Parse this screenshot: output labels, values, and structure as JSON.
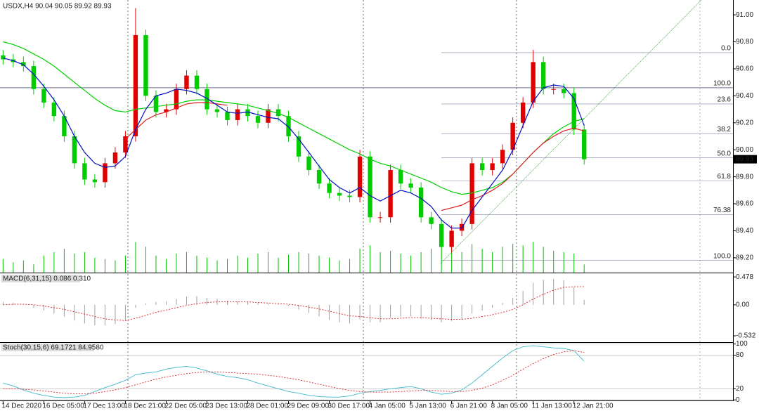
{
  "chart_data": [
    {
      "type": "candlestick",
      "title": "USDX,H4 90.04 90.05 89.92 89.93",
      "xlim": [
        -0.3,
        71.6
      ],
      "xticks": [
        {
          "value": 0,
          "label": "14 Dec 2020"
        },
        {
          "value": 4,
          "label": "16 Dec 05:00"
        },
        {
          "value": 8,
          "label": "17 Dec 13:00"
        },
        {
          "value": 12,
          "label": "18 Dec 21:00"
        },
        {
          "value": 16,
          "label": "22 Dec 05:00"
        },
        {
          "value": 20,
          "label": "23 Dec 13:00"
        },
        {
          "value": 24,
          "label": "28 Dec 01:00"
        },
        {
          "value": 28,
          "label": "29 Dec 09:00"
        },
        {
          "value": 32,
          "label": "30 Dec 17:00"
        },
        {
          "value": 36,
          "label": "4 Jan 05:00"
        },
        {
          "value": 40,
          "label": "5 Jan 13:00"
        },
        {
          "value": 44,
          "label": "6 Jan 21:00"
        },
        {
          "value": 48,
          "label": "8 Jan 05:00"
        },
        {
          "value": 52,
          "label": "11 Jan 13:00"
        },
        {
          "value": 56,
          "label": "12 Jan 21:00"
        }
      ],
      "ylim": [
        89.09,
        91.11
      ],
      "yticks": [
        {
          "value": 91,
          "label": "91.00"
        },
        {
          "value": 90.8,
          "label": "90.80"
        },
        {
          "value": 90.6,
          "label": "90.60"
        },
        {
          "value": 90.4,
          "label": "90.40"
        },
        {
          "value": 90.2,
          "label": "90.20"
        },
        {
          "value": 90,
          "label": "90.00"
        },
        {
          "value": 89.8,
          "label": "89.80"
        },
        {
          "value": 89.6,
          "label": "89.60"
        },
        {
          "value": 89.4,
          "label": "89.40"
        },
        {
          "value": 89.2,
          "label": "89.20"
        }
      ],
      "candles": {
        "up_color": "#e00000",
        "down_color": "#00cc00",
        "open": [
          90.7,
          90.67,
          90.65,
          90.62,
          90.45,
          90.35,
          90.25,
          90.1,
          89.9,
          89.78,
          89.76,
          89.9,
          89.98,
          90.1,
          90.85,
          90.4,
          90.28,
          90.3,
          90.45,
          90.55,
          90.45,
          90.3,
          90.28,
          90.22,
          90.3,
          90.25,
          90.2,
          90.3,
          90.25,
          90.1,
          89.95,
          89.85,
          89.75,
          89.68,
          89.66,
          89.65,
          89.95,
          89.5,
          89.5,
          89.85,
          89.75,
          89.72,
          89.5,
          89.45,
          89.28,
          89.4,
          89.45,
          89.9,
          89.85,
          89.9,
          90.0,
          90.2,
          90.35,
          90.65,
          90.45,
          90.45,
          90.42,
          90.15
        ],
        "high": [
          90.74,
          90.71,
          90.69,
          90.66,
          90.49,
          90.39,
          90.29,
          90.14,
          89.94,
          89.82,
          89.94,
          90.02,
          90.14,
          91.05,
          90.89,
          90.44,
          90.34,
          90.49,
          90.59,
          90.59,
          90.49,
          90.34,
          90.32,
          90.34,
          90.34,
          90.29,
          90.34,
          90.34,
          90.29,
          90.14,
          89.99,
          89.89,
          89.79,
          89.72,
          89.7,
          90.0,
          89.99,
          89.54,
          89.89,
          89.89,
          89.79,
          89.76,
          89.54,
          89.49,
          89.44,
          89.49,
          89.94,
          89.94,
          89.94,
          90.04,
          90.24,
          90.39,
          90.74,
          90.69,
          90.49,
          90.49,
          90.46,
          90.19
        ],
        "low": [
          90.63,
          90.61,
          90.58,
          90.41,
          90.31,
          90.21,
          90.06,
          89.86,
          89.74,
          89.72,
          89.72,
          89.86,
          89.94,
          90.06,
          90.36,
          90.24,
          90.24,
          90.26,
          90.41,
          90.41,
          90.26,
          90.24,
          90.18,
          90.18,
          90.21,
          90.16,
          90.16,
          90.21,
          90.06,
          89.91,
          89.81,
          89.71,
          89.64,
          89.62,
          89.61,
          89.61,
          89.46,
          89.46,
          89.46,
          89.71,
          89.68,
          89.46,
          89.41,
          89.18,
          89.24,
          89.36,
          89.41,
          89.81,
          89.81,
          89.86,
          89.96,
          90.16,
          90.31,
          90.41,
          90.41,
          90.38,
          90.11,
          89.89
        ],
        "close": [
          90.67,
          90.65,
          90.62,
          90.45,
          90.35,
          90.25,
          90.1,
          89.9,
          89.78,
          89.76,
          89.9,
          89.98,
          90.1,
          90.85,
          90.4,
          90.28,
          90.3,
          90.45,
          90.55,
          90.45,
          90.3,
          90.28,
          90.22,
          90.3,
          90.25,
          90.2,
          90.3,
          90.25,
          90.1,
          89.95,
          89.85,
          89.75,
          89.68,
          89.66,
          89.65,
          89.95,
          89.5,
          89.5,
          89.85,
          89.75,
          89.72,
          89.5,
          89.45,
          89.28,
          89.4,
          89.45,
          89.9,
          89.85,
          89.9,
          90.0,
          90.2,
          90.35,
          90.65,
          90.45,
          90.45,
          90.42,
          90.15,
          89.93
        ]
      },
      "volume": {
        "color": "#00c000",
        "ylim": [
          0,
          400
        ],
        "values": [
          20,
          15,
          18,
          12,
          25,
          30,
          35,
          28,
          30,
          22,
          20,
          18,
          25,
          45,
          38,
          25,
          20,
          28,
          30,
          25,
          22,
          18,
          20,
          25,
          22,
          28,
          30,
          22,
          26,
          30,
          28,
          25,
          22,
          18,
          20,
          35,
          40,
          30,
          32,
          28,
          25,
          30,
          35,
          45,
          38,
          30,
          42,
          35,
          30,
          38,
          42,
          40,
          45,
          38,
          32,
          30,
          28,
          12
        ]
      },
      "series": [
        {
          "color": "#00d000",
          "values": [
            90.8,
            90.78,
            90.75,
            90.71,
            90.67,
            90.62,
            90.56,
            90.5,
            90.44,
            90.38,
            90.33,
            90.29,
            90.28,
            90.3,
            90.31,
            90.32,
            90.33,
            90.34,
            90.36,
            90.37,
            90.37,
            90.36,
            90.35,
            90.34,
            90.33,
            90.31,
            90.29,
            90.27,
            90.24,
            90.2,
            90.16,
            90.12,
            90.08,
            90.04,
            90.0,
            89.97,
            89.93,
            89.9,
            89.88,
            89.85,
            89.82,
            89.79,
            89.76,
            89.72,
            89.69,
            89.67,
            89.68,
            89.7,
            89.72,
            89.76,
            89.82,
            89.9,
            89.98,
            90.05,
            90.12,
            90.17,
            90.21,
            90.23
          ]
        },
        {
          "color": "#e02020",
          "values": [
            null,
            null,
            null,
            null,
            null,
            null,
            null,
            null,
            null,
            null,
            null,
            null,
            90.08,
            90.15,
            90.22,
            90.26,
            90.28,
            90.31,
            90.34,
            90.35,
            90.35,
            90.34,
            90.33,
            null,
            null,
            null,
            null,
            null,
            null,
            null,
            null,
            null,
            null,
            null,
            null,
            null,
            null,
            null,
            null,
            null,
            null,
            null,
            null,
            89.55,
            89.57,
            89.59,
            89.63,
            89.66,
            89.7,
            89.75,
            89.82,
            89.9,
            89.98,
            90.05,
            90.1,
            90.14,
            90.16,
            90.14
          ]
        },
        {
          "color": "#0010c0",
          "values": [
            90.68,
            90.66,
            90.63,
            90.56,
            90.47,
            90.37,
            90.25,
            90.1,
            89.98,
            89.9,
            89.87,
            89.88,
            89.95,
            90.15,
            90.3,
            90.4,
            90.42,
            90.45,
            90.44,
            90.42,
            90.38,
            90.33,
            90.28,
            90.27,
            90.28,
            90.26,
            90.24,
            90.23,
            90.17,
            90.08,
            89.98,
            89.88,
            89.78,
            89.72,
            89.68,
            89.72,
            89.66,
            89.62,
            89.66,
            89.7,
            89.68,
            89.64,
            89.58,
            89.48,
            89.42,
            89.42,
            89.55,
            89.65,
            89.75,
            89.85,
            90.0,
            90.18,
            90.36,
            90.46,
            90.48,
            90.47,
            90.38,
            90.18
          ]
        }
      ],
      "fib_anchor_x": 43,
      "fib_levels": [
        {
          "value": 90.72,
          "label": "0.0"
        },
        {
          "value": 90.34,
          "label": "23.6"
        },
        {
          "value": 90.12,
          "label": "38.2"
        },
        {
          "value": 89.94,
          "label": "50.0"
        },
        {
          "value": 89.77,
          "label": "61.8"
        },
        {
          "value": 89.52,
          "label": "76.38"
        },
        {
          "value": 89.18,
          "label": "100.0"
        }
      ],
      "hline": {
        "value": 90.46,
        "label": "100.0"
      },
      "last_price": 89.93
    },
    {
      "type": "macd",
      "title": "MACD(6,31,15) 0.086 0.310",
      "ylim": [
        -0.64,
        0.54
      ],
      "yticks": [
        0.478,
        {
          "value": 0,
          "label": "0.00"
        },
        -0.532
      ],
      "histogram": {
        "color": "#a0a0a0",
        "values": [
          0.05,
          0.03,
          0.0,
          -0.05,
          -0.1,
          -0.15,
          -0.2,
          -0.27,
          -0.32,
          -0.35,
          -0.35,
          -0.33,
          -0.28,
          -0.05,
          0.02,
          0.05,
          0.06,
          0.1,
          0.14,
          0.15,
          0.12,
          0.1,
          0.07,
          0.06,
          0.05,
          0.03,
          0.02,
          0.01,
          -0.02,
          -0.08,
          -0.14,
          -0.2,
          -0.26,
          -0.3,
          -0.32,
          -0.25,
          -0.3,
          -0.3,
          -0.22,
          -0.2,
          -0.2,
          -0.24,
          -0.26,
          -0.3,
          -0.28,
          -0.25,
          -0.15,
          -0.1,
          -0.05,
          0.03,
          0.12,
          0.24,
          0.38,
          0.43,
          0.44,
          0.42,
          0.3,
          0.086
        ]
      },
      "series": [
        {
          "color": "#e02020",
          "dashed": true,
          "values": [
            0.0,
            0.01,
            0.01,
            0.0,
            -0.02,
            -0.05,
            -0.08,
            -0.12,
            -0.16,
            -0.2,
            -0.24,
            -0.26,
            -0.27,
            -0.23,
            -0.18,
            -0.13,
            -0.09,
            -0.05,
            -0.01,
            0.02,
            0.04,
            0.05,
            0.05,
            0.05,
            0.05,
            0.04,
            0.03,
            0.02,
            0.01,
            -0.01,
            -0.04,
            -0.07,
            -0.11,
            -0.15,
            -0.19,
            -0.2,
            -0.22,
            -0.24,
            -0.24,
            -0.23,
            -0.22,
            -0.22,
            -0.23,
            -0.24,
            -0.25,
            -0.25,
            -0.23,
            -0.2,
            -0.17,
            -0.13,
            -0.08,
            0.0,
            0.1,
            0.18,
            0.25,
            0.3,
            0.31,
            0.31
          ]
        }
      ]
    },
    {
      "type": "stochastic",
      "title": "Stoch(30,15,6) 69.1721 84.9580",
      "ylim": [
        -1,
        102
      ],
      "yticks": [
        100,
        80,
        20,
        0
      ],
      "grid": true,
      "series": [
        {
          "color": "#40b8c8",
          "dashed": false,
          "values": [
            30,
            25,
            18,
            12,
            8,
            5,
            4,
            5,
            8,
            15,
            22,
            28,
            35,
            45,
            48,
            50,
            55,
            58,
            60,
            57,
            52,
            46,
            42,
            40,
            36,
            30,
            25,
            20,
            15,
            12,
            8,
            6,
            5,
            5,
            7,
            12,
            15,
            17,
            20,
            22,
            24,
            20,
            14,
            10,
            12,
            18,
            30,
            45,
            60,
            75,
            88,
            95,
            97,
            95,
            93,
            92,
            88,
            69.1721
          ]
        },
        {
          "color": "#e02020",
          "dashed": true,
          "values": [
            20,
            20,
            19,
            18,
            16,
            14,
            12,
            11,
            11,
            12,
            15,
            18,
            22,
            27,
            32,
            37,
            41,
            44,
            47,
            49,
            50,
            50,
            49,
            48,
            47,
            46,
            44,
            42,
            39,
            36,
            32,
            28,
            24,
            20,
            17,
            15,
            14,
            14,
            14,
            15,
            16,
            17,
            17,
            16,
            15,
            15,
            17,
            21,
            27,
            35,
            44,
            55,
            65,
            74,
            81,
            86,
            88,
            84.958
          ]
        }
      ]
    }
  ]
}
